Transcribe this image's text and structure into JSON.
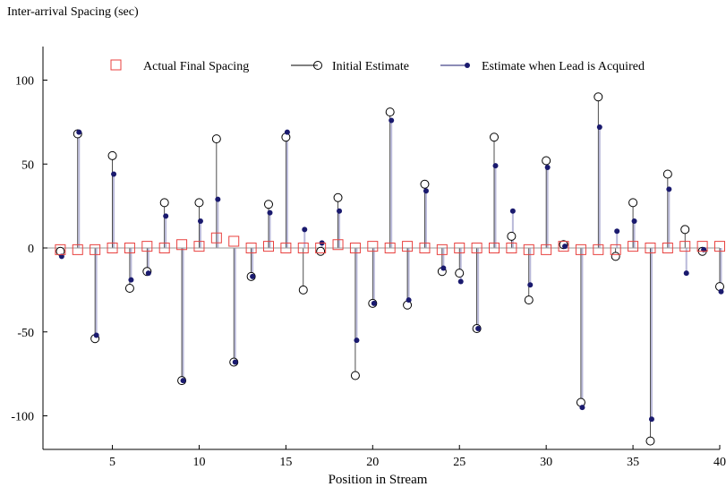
{
  "chart_data": {
    "type": "scatter",
    "title": "",
    "xlabel": "Position in Stream",
    "ylabel": "Inter-arrival Spacing (sec)",
    "xlim": [
      1,
      40
    ],
    "ylim": [
      -120,
      120
    ],
    "xticks": [
      5,
      10,
      15,
      20,
      25,
      30,
      35,
      40
    ],
    "yticks": [
      -100,
      -50,
      0,
      50,
      100
    ],
    "grid": false,
    "legend_position": "top-right",
    "series": [
      {
        "name": "Actual Final Spacing",
        "marker": "open-square",
        "color": "#e8413f",
        "x": [
          2,
          3,
          4,
          5,
          6,
          7,
          8,
          9,
          10,
          11,
          12,
          13,
          14,
          15,
          16,
          17,
          18,
          19,
          20,
          21,
          22,
          23,
          24,
          25,
          26,
          27,
          28,
          29,
          30,
          31,
          32,
          33,
          34,
          35,
          36,
          37,
          38,
          39,
          40
        ],
        "y": [
          -1,
          -1,
          -1,
          0,
          0,
          1,
          0,
          2,
          1,
          6,
          4,
          0,
          1,
          0,
          0,
          0,
          2,
          0,
          1,
          0,
          1,
          0,
          -1,
          0,
          0,
          0,
          0,
          -1,
          -1,
          1,
          -1,
          -1,
          -1,
          1,
          0,
          0,
          1,
          1,
          1
        ]
      },
      {
        "name": "Initial Estimate",
        "marker": "open-circle",
        "color": "#000000",
        "x": [
          2,
          3,
          4,
          5,
          6,
          7,
          8,
          9,
          10,
          11,
          12,
          13,
          14,
          15,
          16,
          17,
          18,
          19,
          20,
          21,
          22,
          23,
          24,
          25,
          26,
          27,
          28,
          29,
          30,
          31,
          32,
          33,
          34,
          35,
          36,
          37,
          38,
          39,
          40
        ],
        "y": [
          -2,
          68,
          -54,
          55,
          -24,
          -14,
          27,
          -79,
          27,
          65,
          -68,
          -17,
          26,
          66,
          -25,
          -2,
          30,
          -76,
          -33,
          81,
          -34,
          38,
          -14,
          -15,
          -48,
          66,
          7,
          -31,
          52,
          2,
          -92,
          90,
          -5,
          27,
          -115,
          44,
          11,
          -2,
          -23
        ]
      },
      {
        "name": "Estimate when Lead is Acquired",
        "marker": "filled-dot",
        "color": "#1a1a6e",
        "x": [
          2,
          3,
          4,
          5,
          6,
          7,
          8,
          9,
          10,
          11,
          12,
          13,
          14,
          15,
          16,
          17,
          18,
          19,
          20,
          21,
          22,
          23,
          24,
          25,
          26,
          27,
          28,
          29,
          30,
          31,
          32,
          33,
          34,
          35,
          36,
          37,
          38,
          39,
          40
        ],
        "y": [
          -5,
          69,
          -52,
          44,
          -19,
          -15,
          19,
          -79,
          16,
          29,
          -68,
          -17,
          21,
          69,
          11,
          3,
          22,
          -55,
          -33,
          76,
          -31,
          34,
          -12,
          -20,
          -48,
          49,
          22,
          -22,
          48,
          1,
          -95,
          72,
          10,
          16,
          -102,
          35,
          -15,
          -1,
          -26
        ]
      }
    ]
  },
  "colors": {
    "actual": "#e8413f",
    "initial": "#000000",
    "lead": "#1a1a6e",
    "stem": "#b9b9d9"
  }
}
